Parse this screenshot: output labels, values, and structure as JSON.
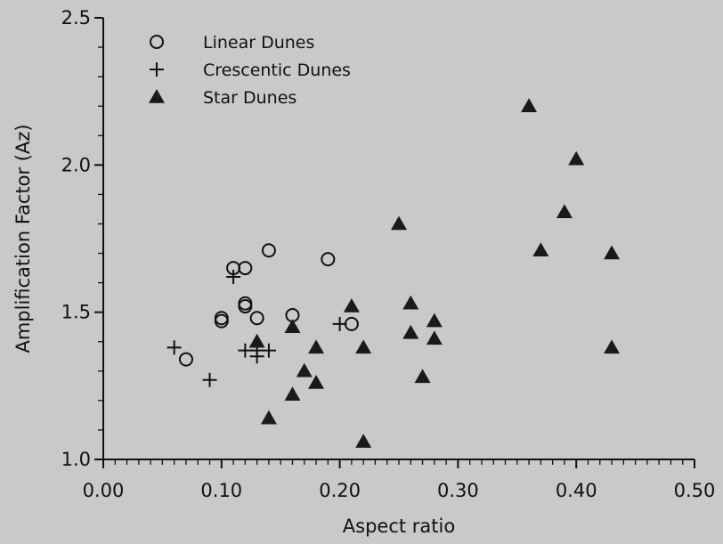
{
  "chart_data": {
    "type": "scatter",
    "xlabel": "Aspect ratio",
    "ylabel": "Amplification Factor (Az)",
    "xlim": [
      0.0,
      0.5
    ],
    "ylim": [
      1.0,
      2.5
    ],
    "x_ticks": [
      "0.00",
      "0.10",
      "0.20",
      "0.30",
      "0.40",
      "0.50"
    ],
    "y_ticks": [
      "1.0",
      "1.5",
      "2.0",
      "2.5"
    ],
    "grid": false,
    "legend_position": "top-left",
    "series": [
      {
        "name": "Linear Dunes",
        "marker": "open-circle",
        "points": [
          [
            0.07,
            1.34
          ],
          [
            0.1,
            1.47
          ],
          [
            0.1,
            1.48
          ],
          [
            0.11,
            1.65
          ],
          [
            0.12,
            1.65
          ],
          [
            0.12,
            1.53
          ],
          [
            0.12,
            1.52
          ],
          [
            0.13,
            1.48
          ],
          [
            0.14,
            1.71
          ],
          [
            0.16,
            1.49
          ],
          [
            0.19,
            1.68
          ],
          [
            0.21,
            1.46
          ]
        ]
      },
      {
        "name": "Crescentic Dunes",
        "marker": "plus",
        "points": [
          [
            0.06,
            1.38
          ],
          [
            0.09,
            1.27
          ],
          [
            0.11,
            1.62
          ],
          [
            0.12,
            1.37
          ],
          [
            0.13,
            1.35
          ],
          [
            0.13,
            1.37
          ],
          [
            0.14,
            1.37
          ],
          [
            0.2,
            1.46
          ]
        ]
      },
      {
        "name": "Star Dunes",
        "marker": "filled-triangle",
        "points": [
          [
            0.13,
            1.4
          ],
          [
            0.14,
            1.14
          ],
          [
            0.16,
            1.45
          ],
          [
            0.16,
            1.22
          ],
          [
            0.17,
            1.3
          ],
          [
            0.18,
            1.38
          ],
          [
            0.18,
            1.26
          ],
          [
            0.21,
            1.52
          ],
          [
            0.22,
            1.38
          ],
          [
            0.22,
            1.06
          ],
          [
            0.25,
            1.8
          ],
          [
            0.26,
            1.53
          ],
          [
            0.26,
            1.43
          ],
          [
            0.27,
            1.28
          ],
          [
            0.28,
            1.47
          ],
          [
            0.28,
            1.41
          ],
          [
            0.36,
            2.2
          ],
          [
            0.37,
            1.71
          ],
          [
            0.39,
            1.84
          ],
          [
            0.4,
            2.02
          ],
          [
            0.43,
            1.7
          ],
          [
            0.43,
            1.38
          ]
        ]
      }
    ]
  }
}
